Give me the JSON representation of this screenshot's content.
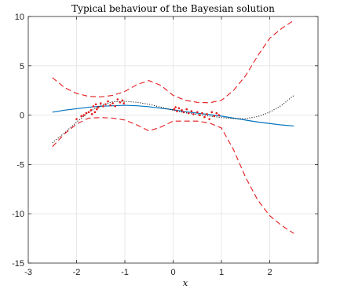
{
  "chart_data": {
    "type": "line",
    "title": "Typical behaviour of the Bayesian solution",
    "xlabel": "x",
    "ylabel": "",
    "xlim": [
      -3,
      3
    ],
    "ylim": [
      -15,
      10
    ],
    "xticks": [
      -3,
      -2,
      -1,
      0,
      1,
      2
    ],
    "yticks": [
      -15,
      -10,
      -5,
      0,
      5,
      10
    ],
    "xtick_labels": [
      "-3",
      "-2",
      "-1",
      "0",
      "1",
      "2"
    ],
    "ytick_labels": [
      "-15",
      "-10",
      "-5",
      "0",
      "5",
      "10"
    ],
    "grid": true,
    "series": [
      {
        "style": "solid",
        "color": "#0072bd",
        "x": [
          -2.5,
          -2.25,
          -2.0,
          -1.75,
          -1.5,
          -1.25,
          -1.0,
          -0.75,
          -0.5,
          -0.25,
          0.0,
          0.25,
          0.5,
          0.75,
          1.0,
          1.25,
          1.5,
          1.75,
          2.0,
          2.25,
          2.5
        ],
        "y": [
          0.3,
          0.5,
          0.65,
          0.8,
          0.9,
          0.95,
          1.0,
          0.95,
          0.85,
          0.7,
          0.55,
          0.35,
          0.2,
          0.05,
          -0.1,
          -0.3,
          -0.5,
          -0.7,
          -0.85,
          -1.0,
          -1.1
        ]
      },
      {
        "style": "dotted",
        "color": "#000000",
        "x": [
          -2.5,
          -2.25,
          -2.0,
          -1.75,
          -1.5,
          -1.25,
          -1.0,
          -0.75,
          -0.5,
          -0.25,
          0.0,
          0.25,
          0.5,
          0.75,
          1.0,
          1.25,
          1.5,
          1.75,
          2.0,
          2.25,
          2.5
        ],
        "y": [
          -2.8,
          -1.8,
          -0.7,
          0.3,
          1.0,
          1.35,
          1.4,
          1.3,
          1.1,
          0.8,
          0.5,
          0.25,
          0.05,
          -0.1,
          -0.25,
          -0.35,
          -0.35,
          -0.15,
          0.3,
          1.0,
          2.0
        ]
      },
      {
        "style": "dashed",
        "color": "#e41a1c",
        "x": [
          -2.5,
          -2.25,
          -2.0,
          -1.75,
          -1.5,
          -1.25,
          -1.0,
          -0.75,
          -0.5,
          -0.25,
          0.0,
          0.25,
          0.5,
          0.75,
          1.0,
          1.25,
          1.5,
          1.75,
          2.0,
          2.25,
          2.5
        ],
        "y": [
          3.8,
          2.8,
          2.2,
          1.9,
          1.85,
          2.0,
          2.4,
          3.1,
          3.5,
          3.0,
          2.0,
          1.5,
          1.3,
          1.25,
          1.5,
          2.5,
          4.0,
          6.0,
          7.8,
          8.8,
          9.6
        ]
      },
      {
        "style": "dashed",
        "color": "#e41a1c",
        "x": [
          -2.5,
          -2.25,
          -2.0,
          -1.75,
          -1.5,
          -1.25,
          -1.0,
          -0.75,
          -0.5,
          -0.25,
          0.0,
          0.25,
          0.5,
          0.75,
          1.0,
          1.25,
          1.5,
          1.75,
          2.0,
          2.25,
          2.5
        ],
        "y": [
          -3.2,
          -1.9,
          -0.9,
          -0.3,
          -0.25,
          -0.3,
          -0.5,
          -1.0,
          -1.6,
          -1.2,
          -0.6,
          -0.6,
          -0.6,
          -0.8,
          -1.3,
          -3.5,
          -6.3,
          -8.6,
          -10.2,
          -11.2,
          -12.0
        ]
      },
      {
        "style": "points",
        "color": "#e41a1c",
        "x": [
          -2.0,
          -1.9,
          -1.85,
          -1.8,
          -1.75,
          -1.7,
          -1.68,
          -1.65,
          -1.62,
          -1.6,
          -1.58,
          -1.55,
          -1.5,
          -1.45,
          -1.4,
          -1.35,
          -1.3,
          -1.25,
          -1.2,
          -1.15,
          -1.1,
          -1.05,
          -1.02,
          0.02,
          0.05,
          0.08,
          0.12,
          0.18,
          0.22,
          0.28,
          0.32,
          0.38,
          0.42,
          0.5,
          0.55,
          0.6,
          0.65,
          0.7,
          0.75,
          0.8,
          0.85,
          0.9,
          0.95
        ],
        "y": [
          -0.4,
          -0.1,
          0.0,
          0.2,
          0.3,
          0.5,
          0.1,
          0.9,
          0.3,
          1.1,
          0.6,
          0.8,
          1.2,
          0.9,
          1.1,
          1.4,
          1.0,
          1.2,
          0.9,
          1.6,
          1.3,
          1.5,
          1.2,
          0.6,
          0.8,
          0.4,
          0.7,
          0.5,
          0.3,
          0.6,
          0.2,
          0.4,
          0.1,
          0.3,
          0.0,
          0.2,
          -0.2,
          0.1,
          -0.4,
          0.3,
          -0.1,
          0.2,
          0.0
        ]
      }
    ]
  }
}
